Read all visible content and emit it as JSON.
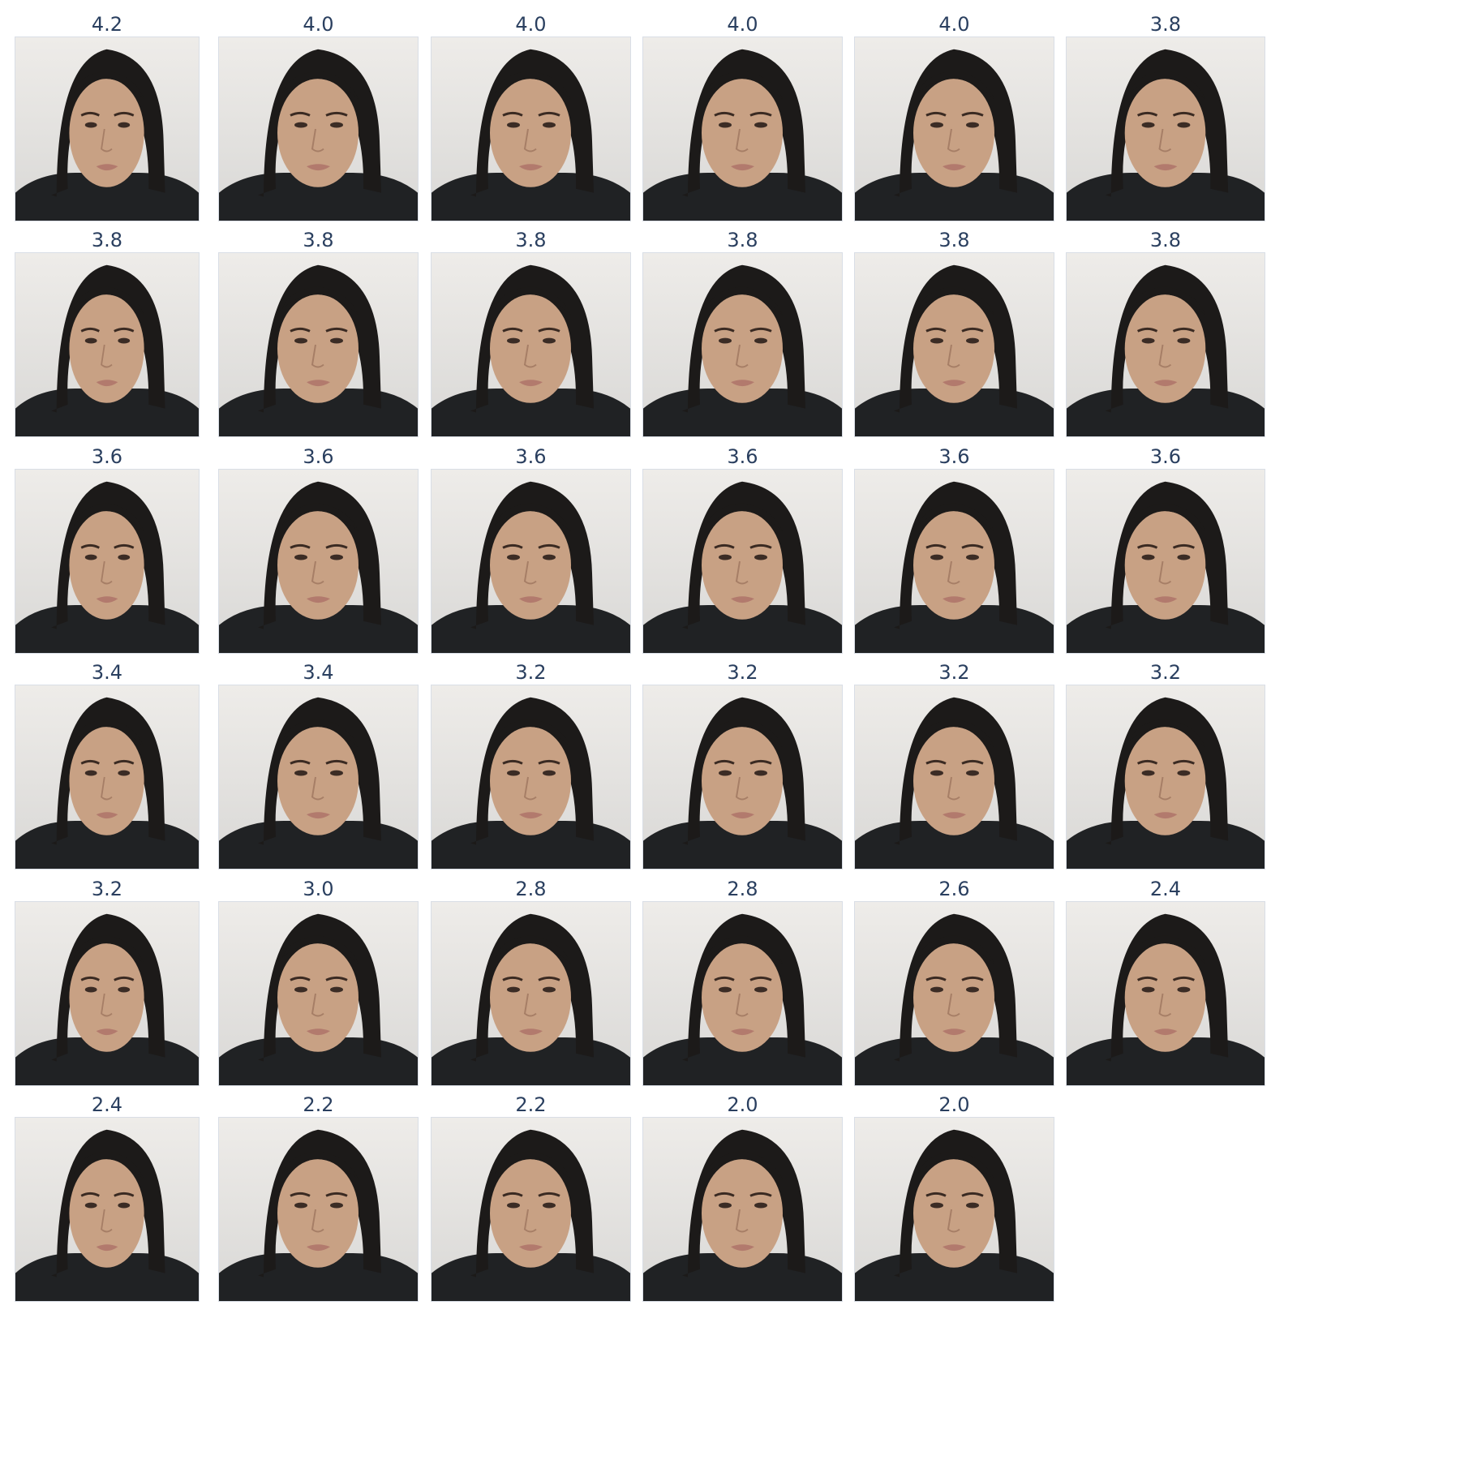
{
  "images": [
    {
      "score": "4.2"
    },
    {
      "score": "4.0"
    },
    {
      "score": "4.0"
    },
    {
      "score": "4.0"
    },
    {
      "score": "4.0"
    },
    {
      "score": "3.8"
    },
    {
      "score": "3.8"
    },
    {
      "score": "3.8"
    },
    {
      "score": "3.8"
    },
    {
      "score": "3.8"
    },
    {
      "score": "3.8"
    },
    {
      "score": "3.8"
    },
    {
      "score": "3.6"
    },
    {
      "score": "3.6"
    },
    {
      "score": "3.6"
    },
    {
      "score": "3.6"
    },
    {
      "score": "3.6"
    },
    {
      "score": "3.6"
    },
    {
      "score": "3.4"
    },
    {
      "score": "3.4"
    },
    {
      "score": "3.2"
    },
    {
      "score": "3.2"
    },
    {
      "score": "3.2"
    },
    {
      "score": "3.2"
    },
    {
      "score": "3.2"
    },
    {
      "score": "3.0"
    },
    {
      "score": "2.8"
    },
    {
      "score": "2.8"
    },
    {
      "score": "2.6"
    },
    {
      "score": "2.4"
    },
    {
      "score": "2.4"
    },
    {
      "score": "2.2"
    },
    {
      "score": "2.2"
    },
    {
      "score": "2.0"
    },
    {
      "score": "2.0"
    }
  ],
  "colors": {
    "score_text": "#2a3f5f",
    "background_wall": "#ebebe6",
    "hair": "#1c1a19",
    "skin": "#c8a184",
    "hoodie": "#202224"
  }
}
